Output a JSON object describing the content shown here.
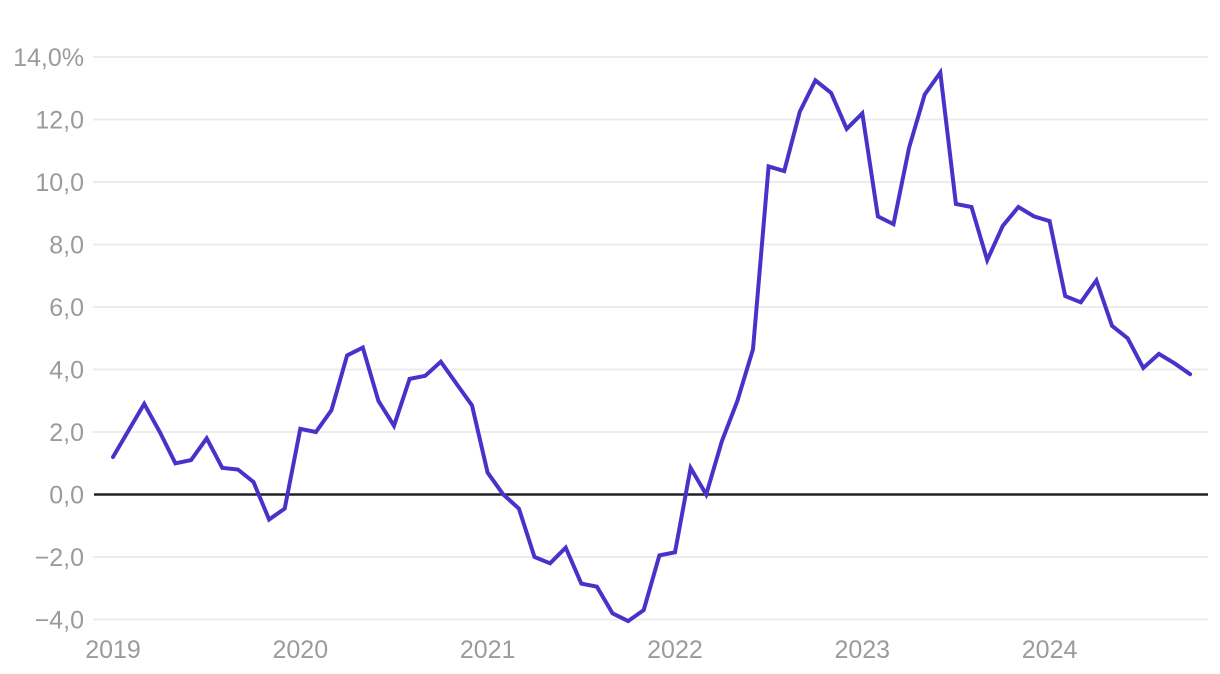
{
  "chart_data": {
    "type": "line",
    "title": "",
    "frequency": "monthly",
    "start": "2019-01",
    "end": "2024-10",
    "unit": "percent",
    "values": [
      1.2,
      2.05,
      2.9,
      2.0,
      1.0,
      1.1,
      1.8,
      0.85,
      0.8,
      0.4,
      -0.8,
      -0.45,
      2.1,
      2.0,
      2.7,
      4.45,
      4.7,
      3.0,
      2.2,
      3.7,
      3.8,
      4.25,
      3.55,
      2.85,
      0.7,
      0.0,
      -0.45,
      -2.0,
      -2.2,
      -1.7,
      -2.85,
      -2.95,
      -3.8,
      -4.05,
      -3.7,
      -1.95,
      -1.85,
      0.85,
      0.0,
      1.7,
      3.0,
      4.65,
      10.5,
      10.35,
      12.25,
      13.25,
      12.85,
      11.7,
      12.2,
      8.9,
      8.65,
      11.1,
      12.8,
      13.5,
      9.3,
      9.2,
      7.5,
      8.6,
      9.2,
      8.9,
      8.75,
      6.35,
      6.15,
      6.85,
      5.4,
      5.0,
      4.05,
      4.5,
      4.2,
      3.85
    ],
    "y_ticks": [
      {
        "value": 14,
        "label": "14,0%"
      },
      {
        "value": 12,
        "label": "12,0"
      },
      {
        "value": 10,
        "label": "10,0"
      },
      {
        "value": 8,
        "label": "8,0"
      },
      {
        "value": 6,
        "label": "6,0"
      },
      {
        "value": 4,
        "label": "4,0"
      },
      {
        "value": 2,
        "label": "2,0"
      },
      {
        "value": 0,
        "label": "0,0"
      },
      {
        "value": -2,
        "label": "−2,0"
      },
      {
        "value": -4,
        "label": "−4,0"
      }
    ],
    "x_tick_labels": [
      "2019",
      "2020",
      "2021",
      "2022",
      "2023",
      "2024"
    ],
    "ylim": [
      -4,
      14
    ],
    "gridline_step": 2,
    "grid_on": true,
    "legend": "none",
    "colors": {
      "line": "#4733c9",
      "zero_line": "#222222",
      "gridline": "#ececec",
      "tick_label": "#9b9b9b",
      "background": "#ffffff"
    }
  }
}
